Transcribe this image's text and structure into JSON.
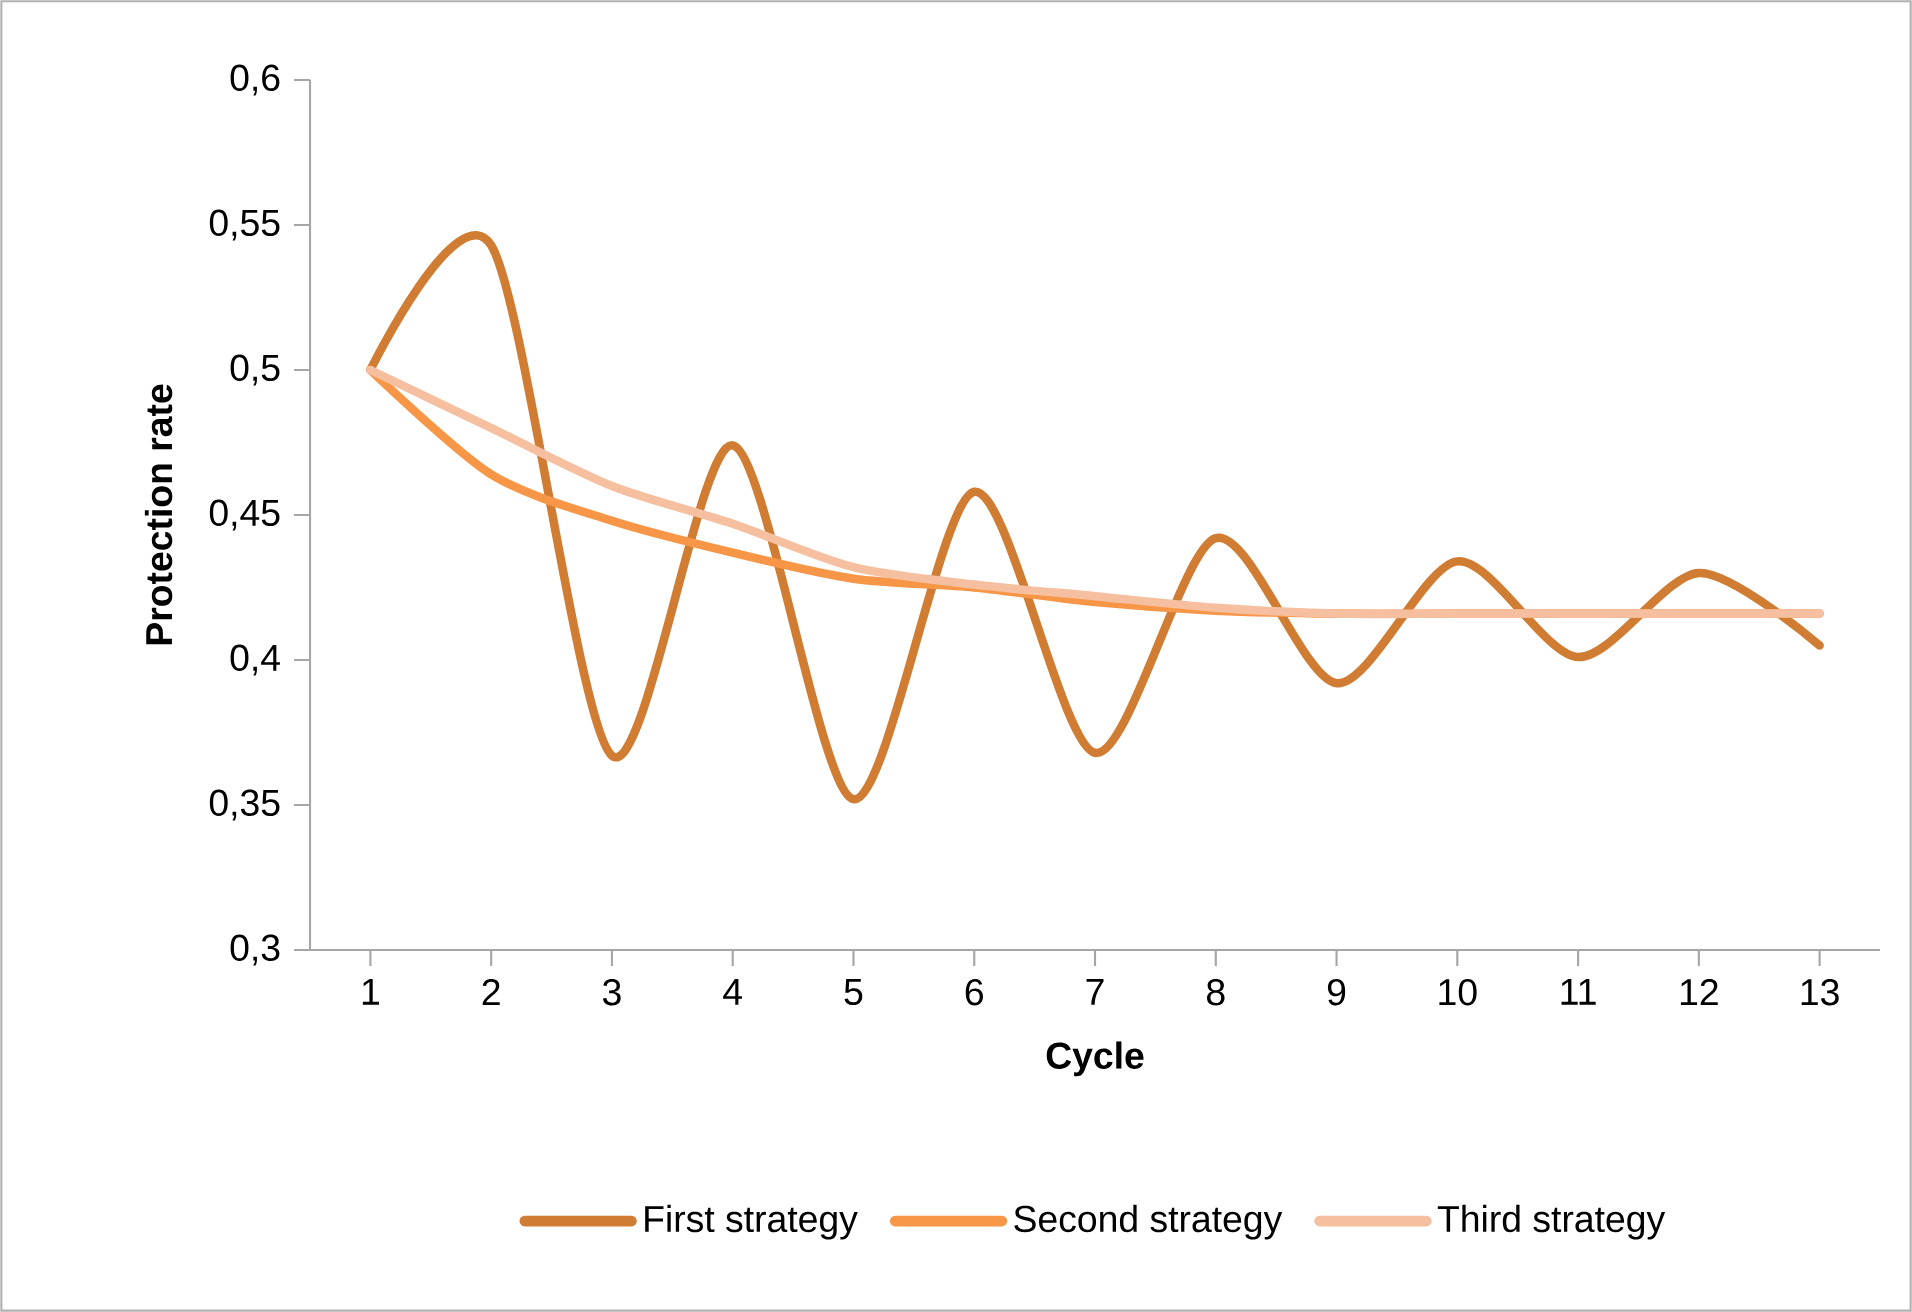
{
  "chart_data": {
    "type": "line",
    "xlabel": "Cycle",
    "ylabel": "Protection rate",
    "categories": [
      "1",
      "2",
      "3",
      "4",
      "5",
      "6",
      "7",
      "8",
      "9",
      "10",
      "11",
      "12",
      "13"
    ],
    "series": [
      {
        "name": "First strategy",
        "color": "#d07c33",
        "values": [
          0.5,
          0.543,
          0.367,
          0.474,
          0.352,
          0.458,
          0.368,
          0.442,
          0.392,
          0.434,
          0.401,
          0.43,
          0.405
        ]
      },
      {
        "name": "Second strategy",
        "color": "#f79646",
        "values": [
          0.5,
          0.464,
          0.448,
          0.437,
          0.428,
          0.425,
          0.42,
          0.417,
          0.416,
          0.416,
          0.416,
          0.416,
          0.416
        ]
      },
      {
        "name": "Third strategy",
        "color": "#f6bfa0",
        "values": [
          0.5,
          0.48,
          0.46,
          0.447,
          0.432,
          0.426,
          0.422,
          0.418,
          0.416,
          0.416,
          0.416,
          0.416,
          0.416
        ]
      }
    ],
    "ylim": [
      0.3,
      0.6
    ],
    "yticks": [
      {
        "value": 0.3,
        "label": "0,3"
      },
      {
        "value": 0.35,
        "label": "0,35"
      },
      {
        "value": 0.4,
        "label": "0,4"
      },
      {
        "value": 0.45,
        "label": "0,45"
      },
      {
        "value": 0.5,
        "label": "0,5"
      },
      {
        "value": 0.55,
        "label": "0,55"
      },
      {
        "value": 0.6,
        "label": "0,6"
      }
    ],
    "grid": false,
    "legend": "bottom",
    "marker": "none",
    "line_style": "solid"
  }
}
